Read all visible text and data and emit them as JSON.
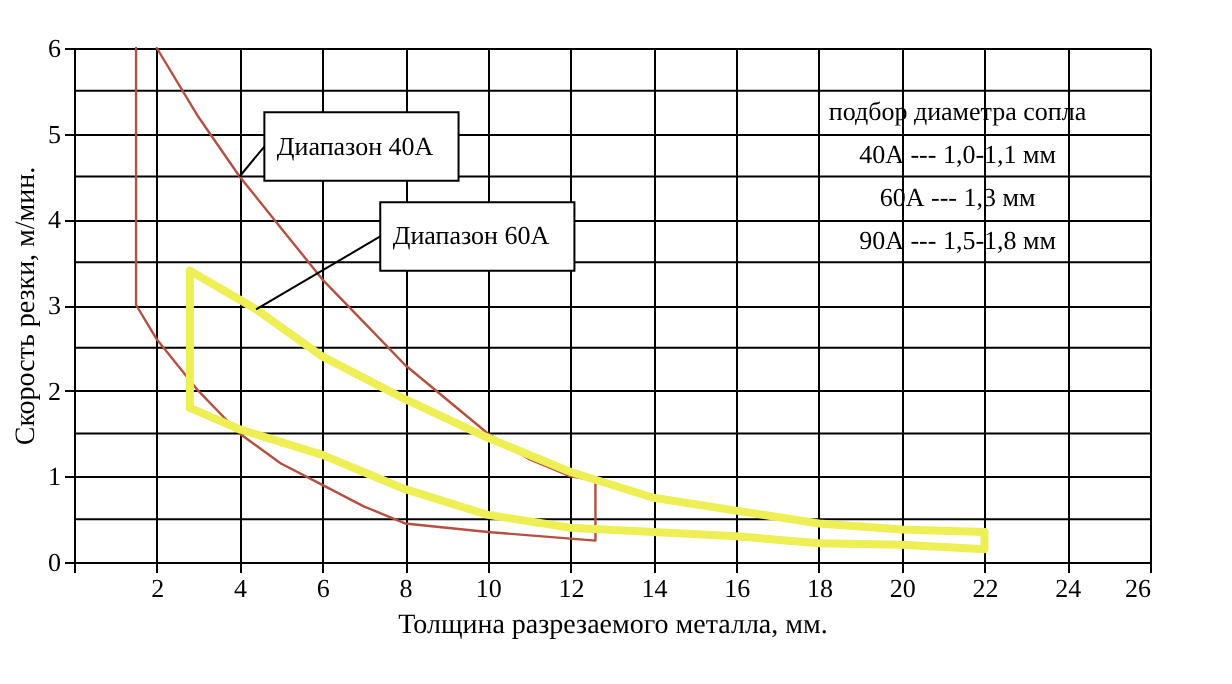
{
  "chart_data": {
    "type": "line",
    "xlabel": "Толщина разрезаемого металла,  мм.",
    "ylabel": "Скорость резки,  м/мин.",
    "xlim": [
      0,
      26
    ],
    "xticks": [
      {
        "value": 0,
        "label": null
      },
      2,
      4,
      6,
      8,
      10,
      12,
      14,
      16,
      18,
      20,
      22,
      24,
      26
    ],
    "ylim": [
      0,
      6
    ],
    "yticks": [
      0,
      {
        "value": 0.5,
        "label": null
      },
      1,
      {
        "value": 1.5,
        "label": null
      },
      2,
      {
        "value": 2.5,
        "label": null
      },
      3,
      {
        "value": 3.5,
        "label": null
      },
      4,
      {
        "value": 4.5,
        "label": null
      },
      5,
      {
        "value": 5.5,
        "label": null
      },
      6
    ],
    "grid": true,
    "legend": false,
    "marker": "none",
    "line_style": "solid",
    "series": [
      {
        "color": "#b5503f",
        "x": [
          1.5,
          1.5,
          2,
          3,
          4,
          5,
          6,
          7,
          8,
          10,
          12.6,
          12.6,
          12,
          11,
          10,
          9,
          8,
          7,
          6,
          5,
          4,
          3,
          2
        ],
        "values": [
          6,
          3,
          2.6,
          2,
          1.5,
          1.15,
          0.9,
          0.65,
          0.45,
          0.35,
          0.25,
          0.95,
          1,
          1.2,
          1.5,
          1.9,
          2.3,
          2.8,
          3.3,
          3.9,
          4.5,
          5.2,
          6
        ]
      },
      {
        "color": "#eeee55",
        "x": [
          2.8,
          4.4,
          6,
          8,
          10,
          12,
          14,
          16,
          18,
          20,
          22,
          22,
          20,
          18,
          16,
          14,
          12,
          10,
          8,
          6,
          4,
          2.8
        ],
        "values": [
          3.4,
          2.95,
          2.4,
          1.9,
          1.45,
          1.05,
          0.75,
          0.6,
          0.45,
          0.38,
          0.35,
          0.15,
          0.2,
          0.22,
          0.3,
          0.35,
          0.4,
          0.55,
          0.85,
          1.25,
          1.55,
          1.8
        ]
      },
      {
        "color": "#eeee55",
        "x": [
          2.8,
          2.8
        ],
        "values": [
          1.8,
          3.4
        ]
      }
    ],
    "annotations": [
      {
        "text": "Диапазон 40А",
        "x": 4,
        "y": 4.5
      },
      {
        "text": "Диапазон 60А",
        "x": 4.4,
        "y": 2.95
      },
      "подбор диаметра сопла",
      "40А --- 1,0-1,1 мм",
      "60А ---        1,3 мм",
      "90А --- 1,5-1,8 мм"
    ]
  }
}
